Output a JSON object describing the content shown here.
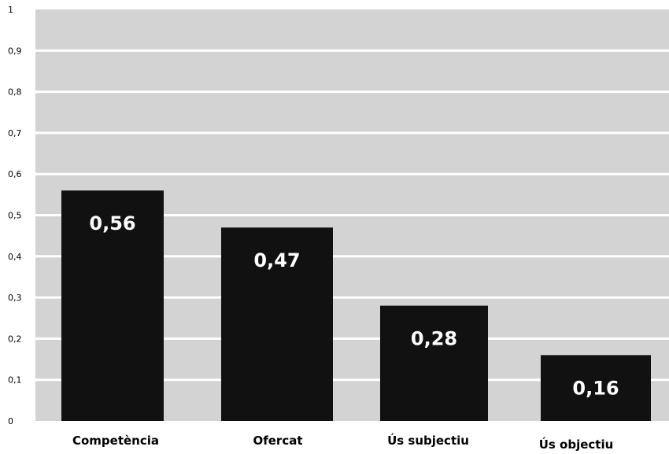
{
  "chart_data": {
    "type": "bar",
    "title": "",
    "xlabel": "",
    "ylabel": "",
    "categories": [
      "Competència",
      "Ofercat",
      "Ús subjectiu",
      "Ús objectiu"
    ],
    "values": [
      0.56,
      0.47,
      0.28,
      0.16
    ],
    "value_labels": [
      "0,56",
      "0,47",
      "0,28",
      "0,16"
    ],
    "ylim": [
      0,
      1
    ],
    "y_ticks": [
      0,
      0.1,
      0.2,
      0.3,
      0.4,
      0.5,
      0.6,
      0.7,
      0.8,
      0.9,
      1
    ],
    "y_tick_labels": [
      "0",
      "0,1",
      "0,2",
      "0,3",
      "0,4",
      "0,5",
      "0,6",
      "0,7",
      "0,8",
      "0,9",
      "1"
    ],
    "grid": true,
    "colors": {
      "plot_background": "#d3d3d3",
      "gridline": "#ffffff",
      "bar": "#111111",
      "bar_label": "#ffffff",
      "text": "#000000"
    }
  }
}
